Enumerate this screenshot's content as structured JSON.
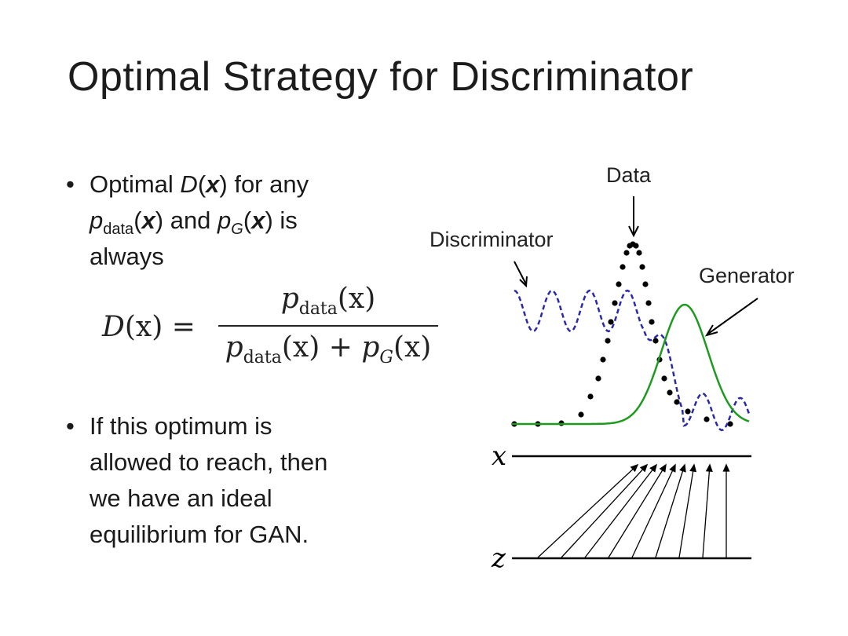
{
  "slide": {
    "title": "Optimal Strategy for Discriminator"
  },
  "bullets": [
    {
      "parts": [
        "Optimal ",
        "D",
        "(",
        "x",
        ") for any ",
        "p",
        "data",
        "(",
        "x",
        ") and ",
        "p",
        "G",
        "(",
        "x",
        ") is",
        "always"
      ]
    },
    {
      "lines": [
        "If this optimum is",
        "allowed to reach, then",
        "we have an ideal",
        "equilibrium for GAN."
      ]
    }
  ],
  "formula": {
    "lhs_fn": "D",
    "lhs_arg": "(x) =",
    "num_p": "p",
    "num_sub": "data",
    "num_arg": "(x)",
    "den_p": "p",
    "den_sub": "data",
    "den_mid": "(x) +",
    "den_p2": "p",
    "den_sub2": "G",
    "den_arg2": "(x)"
  },
  "diagram": {
    "labels": {
      "data": "Data",
      "discriminator": "Discriminator",
      "generator": "Generator",
      "x_axis": "x",
      "z_axis": "z"
    },
    "colors": {
      "data": "#000000",
      "discriminator": "#2a2aa8",
      "generator": "#1e9a1e",
      "axis": "#000000"
    }
  }
}
